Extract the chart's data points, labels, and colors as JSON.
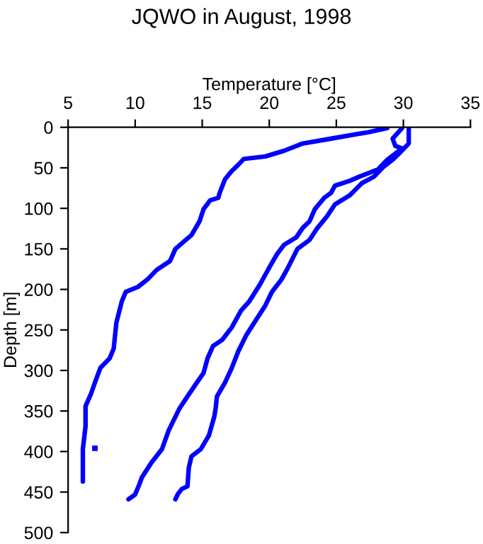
{
  "chart_data": {
    "type": "line",
    "title": "JQWO in August, 1998",
    "xlabel": "Temperature [°C]",
    "ylabel": "Depth [m]",
    "xlim": [
      5,
      35
    ],
    "xticks": [
      5,
      10,
      15,
      20,
      25,
      30,
      35
    ],
    "ylim": [
      500,
      0
    ],
    "yticks": [
      0,
      50,
      100,
      150,
      200,
      250,
      300,
      350,
      400,
      450,
      500
    ],
    "grid": false,
    "legend": false,
    "line_style": "solid",
    "marker": "none",
    "series": [
      {
        "color": "#0000ff",
        "x": [
          28.8,
          27.4,
          24.6,
          22.5,
          21.1,
          19.7,
          18.1,
          17.7,
          17.2,
          16.7,
          16.3,
          16.2,
          15.6,
          15.1,
          14.8,
          14.2,
          13.7,
          13.0,
          12.6,
          11.6,
          10.9,
          10.2,
          9.3,
          9.0,
          8.6,
          8.4,
          8.1,
          7.4,
          7.0,
          6.7,
          6.3,
          6.3,
          6.1,
          6.1
        ],
        "values": [
          1,
          6,
          14,
          20,
          29,
          36,
          39,
          46,
          54,
          64,
          81,
          87,
          90,
          101,
          116,
          133,
          140,
          150,
          165,
          176,
          188,
          197,
          203,
          215,
          241,
          273,
          285,
          297,
          315,
          329,
          344,
          369,
          397,
          437
        ]
      },
      {
        "type": "scatter",
        "marker": "square",
        "color": "#0000ff",
        "x": [
          7.0
        ],
        "values": [
          396
        ]
      },
      {
        "color": "#0000ff",
        "x": [
          29.9,
          29.2,
          29.4,
          29.9,
          28.8,
          28.1,
          26.7,
          26.0,
          24.9,
          24.6,
          24.1,
          23.4,
          23.0,
          22.5,
          22.0,
          21.1,
          20.6,
          20.0,
          19.3,
          18.5,
          17.9,
          17.2,
          16.5,
          15.8,
          15.4,
          15.1,
          14.6,
          13.9,
          13.3,
          12.5,
          12.0,
          11.2,
          10.5,
          10.3,
          10.0,
          9.5
        ],
        "values": [
          1,
          14,
          23,
          26,
          40,
          52,
          61,
          66,
          72,
          81,
          87,
          101,
          116,
          124,
          136,
          145,
          156,
          173,
          194,
          215,
          226,
          247,
          262,
          270,
          285,
          303,
          315,
          332,
          347,
          374,
          397,
          414,
          432,
          441,
          453,
          459
        ]
      },
      {
        "color": "#0000ff",
        "x": [
          30.4,
          30.4,
          29.7,
          29.2,
          28.5,
          27.8,
          26.9,
          26.0,
          24.9,
          24.3,
          23.6,
          23.0,
          22.1,
          21.4,
          20.9,
          20.2,
          19.7,
          19.0,
          18.3,
          17.7,
          17.2,
          16.7,
          16.1,
          16.0,
          15.9,
          15.5,
          14.9,
          14.2,
          14.0,
          13.9,
          13.5,
          13.2,
          13.0
        ],
        "values": [
          1,
          20,
          32,
          40,
          49,
          61,
          69,
          84,
          95,
          110,
          124,
          139,
          150,
          173,
          188,
          203,
          220,
          238,
          256,
          276,
          297,
          315,
          332,
          347,
          357,
          380,
          397,
          406,
          420,
          443,
          446,
          452,
          459
        ]
      }
    ]
  }
}
